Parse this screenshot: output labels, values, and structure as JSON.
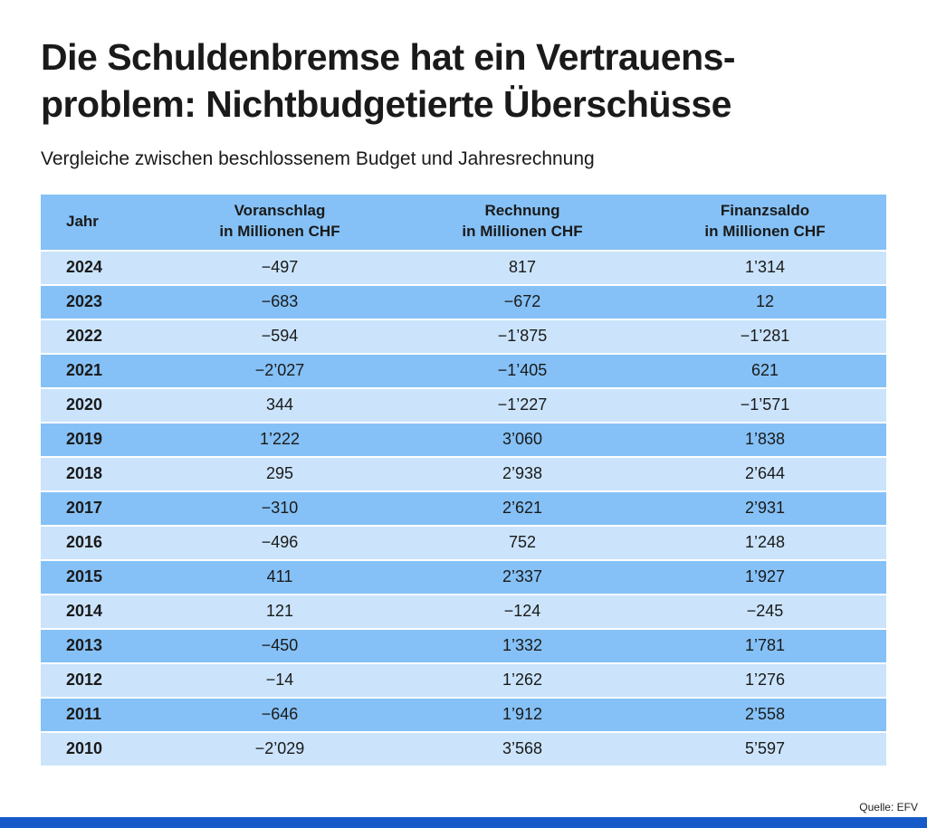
{
  "header": {
    "title_line1": "Die Schuldenbremse hat ein Vertrauens-",
    "title_line2": "problem: Nichtbudgetierte Überschüsse",
    "subtitle": "Vergleiche zwischen beschlossenem Budget und Jahresrechnung"
  },
  "source": "Quelle: EFV",
  "colors": {
    "row_light": "#cbe4fc",
    "row_dark": "#85c1f6",
    "header_bg": "#85c1f6",
    "footer_bar": "#1659c9",
    "text": "#1a1a1a"
  },
  "chart_data": {
    "type": "table",
    "title": "Die Schuldenbremse hat ein Vertrauensproblem: Nichtbudgetierte Überschüsse",
    "subtitle": "Vergleiche zwischen beschlossenem Budget und Jahresrechnung",
    "headers": [
      {
        "line1": "Jahr",
        "line2": ""
      },
      {
        "line1": "Voranschlag",
        "line2": "in Millionen CHF"
      },
      {
        "line1": "Rechnung",
        "line2": "in Millionen CHF"
      },
      {
        "line1": "Finanzsaldo",
        "line2": "in Millionen CHF"
      }
    ],
    "rows": [
      [
        "2024",
        "−497",
        "817",
        "1’314"
      ],
      [
        "2023",
        "−683",
        "−672",
        "12"
      ],
      [
        "2022",
        "−594",
        "−1’875",
        "−1’281"
      ],
      [
        "2021",
        "−2’027",
        "−1’405",
        "621"
      ],
      [
        "2020",
        "344",
        "−1’227",
        "−1’571"
      ],
      [
        "2019",
        "1’222",
        "3’060",
        "1’838"
      ],
      [
        "2018",
        "295",
        "2’938",
        "2’644"
      ],
      [
        "2017",
        "−310",
        "2’621",
        "2’931"
      ],
      [
        "2016",
        "−496",
        "752",
        "1’248"
      ],
      [
        "2015",
        "411",
        "2’337",
        "1’927"
      ],
      [
        "2014",
        "121",
        "−124",
        "−245"
      ],
      [
        "2013",
        "−450",
        "1’332",
        "1’781"
      ],
      [
        "2012",
        "−14",
        "1’262",
        "1’276"
      ],
      [
        "2011",
        "−646",
        "1’912",
        "2’558"
      ],
      [
        "2010",
        "−2’029",
        "3’568",
        "5’597"
      ]
    ]
  }
}
